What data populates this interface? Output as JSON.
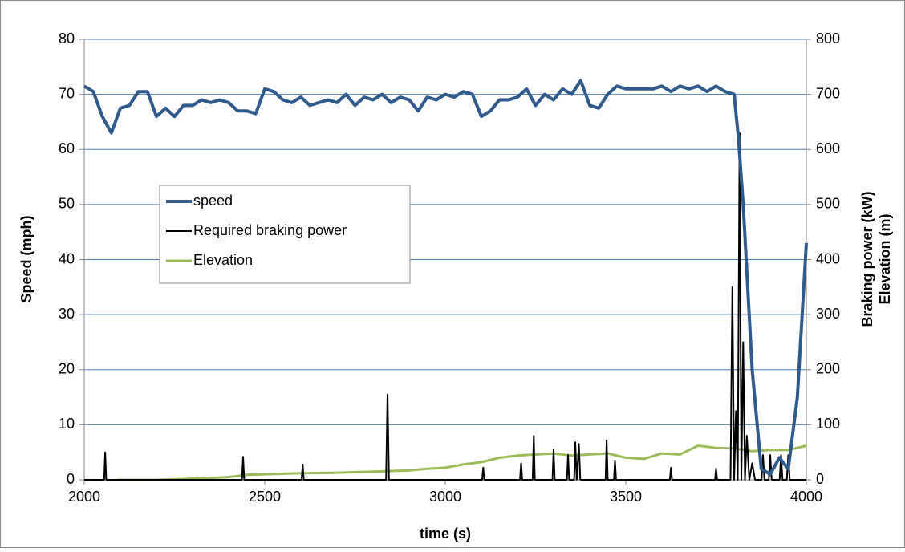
{
  "chart_data": {
    "type": "line",
    "xlabel": "time (s)",
    "ylabel": "Speed (mph)",
    "y2label": [
      "Braking power (kW)",
      "Elevation (m)"
    ],
    "xlim": [
      2000,
      4000
    ],
    "xticks": [
      2000,
      2500,
      3000,
      3500,
      4000
    ],
    "ylim": [
      0,
      80
    ],
    "yticks": [
      0,
      10,
      20,
      30,
      40,
      50,
      60,
      70,
      80
    ],
    "y2lim": [
      0,
      800
    ],
    "y2ticks": [
      0,
      100,
      200,
      300,
      400,
      500,
      600,
      700,
      800
    ],
    "grid": true,
    "legend": "left",
    "series": [
      {
        "name": "speed",
        "color": "#2e5a8e",
        "width": 4,
        "axis": "y",
        "x": [
          2000,
          2025,
          2050,
          2075,
          2100,
          2125,
          2150,
          2175,
          2200,
          2225,
          2250,
          2275,
          2300,
          2325,
          2350,
          2375,
          2400,
          2425,
          2450,
          2475,
          2500,
          2525,
          2550,
          2575,
          2600,
          2625,
          2650,
          2675,
          2700,
          2725,
          2750,
          2775,
          2800,
          2825,
          2850,
          2875,
          2900,
          2925,
          2950,
          2975,
          3000,
          3025,
          3050,
          3075,
          3100,
          3125,
          3150,
          3175,
          3200,
          3225,
          3250,
          3275,
          3300,
          3325,
          3350,
          3375,
          3400,
          3425,
          3450,
          3475,
          3500,
          3525,
          3550,
          3575,
          3600,
          3625,
          3650,
          3675,
          3700,
          3725,
          3750,
          3775,
          3800,
          3812,
          3825,
          3850,
          3875,
          3900,
          3925,
          3950,
          3975,
          4000
        ],
        "values": [
          71.5,
          70.5,
          66,
          63,
          67.5,
          68,
          70.5,
          70.5,
          66,
          67.5,
          66,
          68,
          68,
          69,
          68.5,
          69,
          68.5,
          67,
          67,
          66.5,
          71,
          70.5,
          69,
          68.5,
          69.5,
          68,
          68.5,
          69,
          68.5,
          70,
          68,
          69.5,
          69,
          70,
          68.5,
          69.5,
          69,
          67,
          69.5,
          69,
          70,
          69.5,
          70.5,
          70,
          66,
          67,
          69,
          69,
          69.5,
          71,
          68,
          70,
          69,
          71,
          70,
          72.5,
          68,
          67.5,
          70,
          71.5,
          71,
          71,
          71,
          71,
          71.5,
          70.5,
          71.5,
          71,
          71.5,
          70.5,
          71.5,
          70.5,
          70,
          62,
          50,
          20,
          2,
          1,
          4,
          2,
          15,
          43
        ]
      },
      {
        "name": "Required braking power",
        "color": "#000000",
        "width": 2,
        "axis": "y2",
        "x": [
          2000,
          2055,
          2058,
          2061,
          2437,
          2440,
          2443,
          2602,
          2605,
          2608,
          2836,
          2840,
          2844,
          3102,
          3105,
          3108,
          3207,
          3210,
          3213,
          3242,
          3245,
          3248,
          3297,
          3300,
          3303,
          3337,
          3340,
          3343,
          3357,
          3360,
          3364,
          3370,
          3374,
          3444,
          3447,
          3450,
          3467,
          3470,
          3473,
          3622,
          3625,
          3628,
          3747,
          3750,
          3753,
          3790,
          3795,
          3800,
          3805,
          3810,
          3815,
          3820,
          3825,
          3830,
          3835,
          3842,
          3850,
          3858,
          3876,
          3880,
          3884,
          3896,
          3900,
          3904,
          3926,
          3930,
          3934,
          3946,
          3950,
          3954,
          4000
        ],
        "values": [
          0,
          0,
          50,
          0,
          0,
          42,
          0,
          0,
          28,
          0,
          0,
          155,
          0,
          0,
          22,
          0,
          0,
          30,
          0,
          0,
          80,
          0,
          0,
          55,
          0,
          0,
          45,
          0,
          0,
          68,
          0,
          65,
          0,
          0,
          72,
          0,
          0,
          35,
          0,
          0,
          22,
          0,
          0,
          20,
          0,
          0,
          350,
          0,
          125,
          0,
          630,
          0,
          250,
          0,
          80,
          0,
          30,
          0,
          0,
          45,
          0,
          0,
          45,
          0,
          0,
          45,
          0,
          0,
          45,
          0,
          0
        ]
      },
      {
        "name": "Elevation",
        "color": "#9bbb59",
        "width": 3,
        "axis": "y2",
        "x": [
          2090,
          2100,
          2200,
          2300,
          2400,
          2450,
          2500,
          2600,
          2700,
          2800,
          2900,
          2950,
          3000,
          3050,
          3100,
          3150,
          3200,
          3250,
          3300,
          3350,
          3400,
          3450,
          3500,
          3550,
          3600,
          3650,
          3700,
          3750,
          3800,
          3850,
          3900,
          3950,
          4000
        ],
        "values": [
          0,
          0,
          0,
          2,
          5,
          9,
          10,
          12,
          13,
          15,
          17,
          20,
          22,
          28,
          32,
          40,
          44,
          46,
          48,
          44,
          46,
          48,
          40,
          38,
          48,
          46,
          62,
          58,
          57,
          52,
          54,
          54,
          62
        ]
      }
    ]
  }
}
